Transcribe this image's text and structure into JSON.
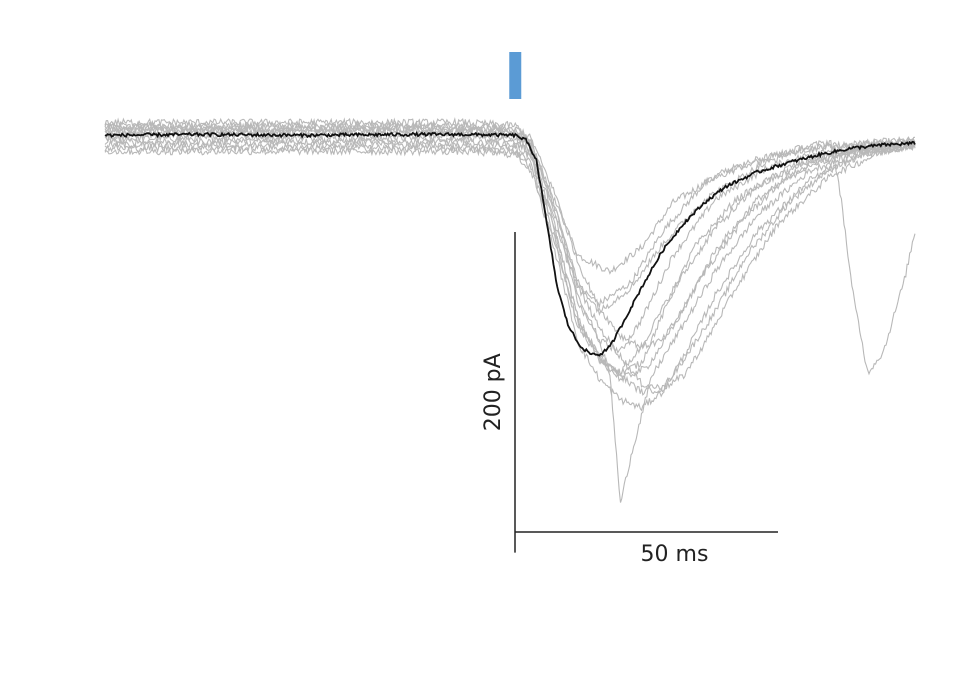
{
  "chart_data": {
    "type": "line",
    "title": "",
    "xlabel": "",
    "ylabel": "",
    "x_unit": "ms",
    "y_unit": "pA",
    "xlim": [
      -78,
      76
    ],
    "ylim": [
      -240,
      22
    ],
    "grid": false,
    "legend": "none",
    "stimulus": {
      "onset_ms": 0,
      "duration_ms": 2,
      "color": "#5b9bd5"
    },
    "scale_bars": {
      "y": {
        "value": 200,
        "label": "200 pA"
      },
      "x": {
        "value": 50,
        "label": "50 ms"
      }
    },
    "trace_colors": {
      "individual": "#b8b8b8",
      "average": "#111111"
    },
    "traces": [
      {
        "x": [
          -78,
          -10,
          0,
          3,
          8,
          12,
          18,
          24,
          30,
          40,
          50,
          60,
          70,
          76
        ],
        "y": [
          5,
          5,
          3,
          -5,
          -45,
          -75,
          -85,
          -70,
          -42,
          -22,
          -12,
          -7,
          -4,
          -3
        ]
      },
      {
        "x": [
          -78,
          -10,
          0,
          3,
          8,
          12,
          16,
          22,
          28,
          36,
          46,
          56,
          66,
          76
        ],
        "y": [
          -2,
          -2,
          -4,
          -12,
          -60,
          -95,
          -105,
          -92,
          -60,
          -30,
          -15,
          -8,
          -5,
          -4
        ]
      },
      {
        "x": [
          -78,
          -10,
          0,
          3,
          8,
          12,
          16,
          20,
          24,
          30,
          38,
          48,
          58,
          68,
          76
        ],
        "y": [
          2,
          2,
          0,
          -10,
          -55,
          -105,
          -128,
          -135,
          -115,
          -75,
          -40,
          -20,
          -10,
          -6,
          -4
        ]
      },
      {
        "x": [
          -78,
          -10,
          0,
          3,
          8,
          12,
          16,
          20,
          24,
          28,
          34,
          42,
          52,
          62,
          76
        ],
        "y": [
          -4,
          -4,
          -6,
          -14,
          -65,
          -115,
          -138,
          -148,
          -142,
          -112,
          -70,
          -40,
          -20,
          -10,
          -5
        ]
      },
      {
        "x": [
          -78,
          -10,
          0,
          3,
          8,
          12,
          16,
          20,
          24,
          28,
          32,
          38,
          46,
          56,
          66,
          76
        ],
        "y": [
          8,
          8,
          6,
          -2,
          -40,
          -80,
          -108,
          -125,
          -132,
          -128,
          -108,
          -72,
          -40,
          -18,
          -8,
          -5
        ]
      },
      {
        "x": [
          -78,
          -10,
          0,
          3,
          8,
          12,
          16,
          20,
          25,
          30,
          36,
          44,
          52,
          62,
          76
        ],
        "y": [
          -6,
          -6,
          -8,
          -18,
          -70,
          -118,
          -140,
          -152,
          -145,
          -120,
          -85,
          -50,
          -25,
          -12,
          -6
        ]
      },
      {
        "x": [
          -78,
          -10,
          0,
          3,
          8,
          12,
          16,
          20,
          24,
          28,
          32,
          36,
          42,
          50,
          60,
          70,
          76
        ],
        "y": [
          4,
          4,
          2,
          -6,
          -50,
          -95,
          -120,
          -138,
          -155,
          -158,
          -150,
          -130,
          -95,
          -55,
          -25,
          -10,
          -6
        ]
      },
      {
        "x": [
          -78,
          -10,
          0,
          3,
          8,
          12,
          16,
          20,
          24,
          28,
          32,
          38,
          46,
          56,
          66,
          76
        ],
        "y": [
          -8,
          -8,
          -10,
          -20,
          -78,
          -130,
          -152,
          -165,
          -170,
          -160,
          -138,
          -100,
          -60,
          -28,
          -12,
          -7
        ]
      },
      {
        "x": [
          -78,
          -10,
          0,
          3,
          8,
          12,
          16,
          18,
          20,
          22,
          26,
          32,
          38,
          46,
          56,
          66,
          76
        ],
        "y": [
          6,
          6,
          4,
          -4,
          -50,
          -100,
          -128,
          -150,
          -230,
          -200,
          -150,
          -118,
          -85,
          -50,
          -22,
          -10,
          -6
        ]
      },
      {
        "x": [
          -78,
          -10,
          0,
          3,
          8,
          12,
          16,
          20,
          24,
          28,
          32,
          38,
          44,
          52,
          60,
          68,
          76
        ],
        "y": [
          0,
          0,
          -2,
          -12,
          -65,
          -115,
          -138,
          -150,
          -160,
          -158,
          -140,
          -110,
          -75,
          -42,
          -20,
          -10,
          -6
        ]
      },
      {
        "x": [
          -78,
          -10,
          0,
          3,
          8,
          12,
          16,
          22,
          28,
          36,
          46,
          54,
          60,
          62,
          64,
          67,
          70,
          74,
          76
        ],
        "y": [
          3,
          3,
          1,
          -6,
          -52,
          -92,
          -110,
          -95,
          -68,
          -40,
          -20,
          -8,
          -4,
          -40,
          -95,
          -148,
          -135,
          -90,
          -60
        ]
      },
      {
        "x": [
          -78,
          -10,
          0,
          3,
          8,
          12,
          16,
          20,
          24,
          30,
          38,
          46,
          56,
          66,
          76
        ],
        "y": [
          -10,
          -10,
          -12,
          -22,
          -72,
          -120,
          -140,
          -148,
          -132,
          -96,
          -58,
          -32,
          -16,
          -9,
          -6
        ]
      }
    ],
    "average": {
      "x": [
        -78,
        -60,
        -40,
        -20,
        -10,
        0,
        2,
        4,
        6,
        8,
        10,
        12,
        14,
        16,
        18,
        20,
        24,
        28,
        32,
        36,
        40,
        46,
        52,
        58,
        64,
        70,
        76
      ],
      "y": [
        0,
        0.5,
        0,
        0.5,
        0.5,
        0,
        -3,
        -15,
        -55,
        -95,
        -118,
        -130,
        -136,
        -137,
        -132,
        -120,
        -95,
        -72,
        -55,
        -42,
        -32,
        -23,
        -17,
        -12,
        -8,
        -6,
        -5
      ]
    }
  }
}
